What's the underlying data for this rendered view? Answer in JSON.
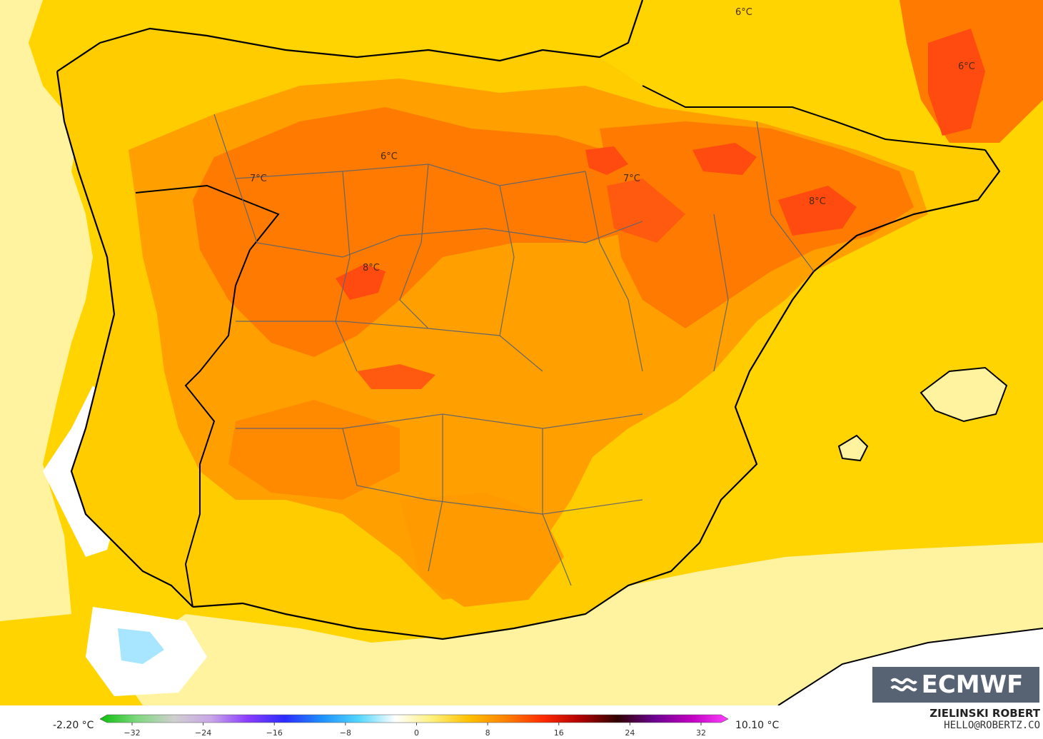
{
  "map": {
    "contour_labels": [
      {
        "text": "6°C",
        "lon_lat": [
          2.0,
          43.6
        ]
      },
      {
        "text": "6°C",
        "lon_lat": [
          3.8,
          42.8
        ]
      },
      {
        "text": "6°C",
        "lon_lat": [
          -4.1,
          42.0
        ]
      },
      {
        "text": "7°C",
        "lon_lat": [
          -6.6,
          41.8
        ]
      },
      {
        "text": "7°C",
        "lon_lat": [
          -0.9,
          41.7
        ]
      },
      {
        "text": "8°C",
        "lon_lat": [
          1.6,
          41.3
        ]
      },
      {
        "text": "8°C",
        "lon_lat": [
          -4.7,
          40.6
        ]
      }
    ],
    "colors": {
      "sea_yellow": "#ffd400",
      "pale_yellow": "#fff3a0",
      "mid_yellow": "#ffcc00",
      "orange": "#ffa000",
      "deep_orange": "#ff7a00",
      "red_orange": "#ff4a10",
      "coast": "#000000",
      "borders": "#555555"
    }
  },
  "logo": {
    "text": "ECMWF"
  },
  "colorbar": {
    "min_label": "-2.20 °C",
    "max_label": "10.10 °C",
    "ticks": [
      "−32",
      "−24",
      "−16",
      "−8",
      "0",
      "8",
      "16",
      "24",
      "32"
    ],
    "stops": [
      "#0bbf0b",
      "#7ed87e",
      "#cfcfcf",
      "#c9a6e8",
      "#8a3cff",
      "#2b2bff",
      "#1e90ff",
      "#52d6ff",
      "#ffffff",
      "#fff07a",
      "#ffc000",
      "#ff8000",
      "#ff2a00",
      "#b00000",
      "#300000",
      "#6a0090",
      "#c000c0",
      "#ff40ff"
    ]
  },
  "credit": {
    "name": "ZIELINSKI ROBERT",
    "email": "HELLO@ROBERTZ.CO"
  }
}
